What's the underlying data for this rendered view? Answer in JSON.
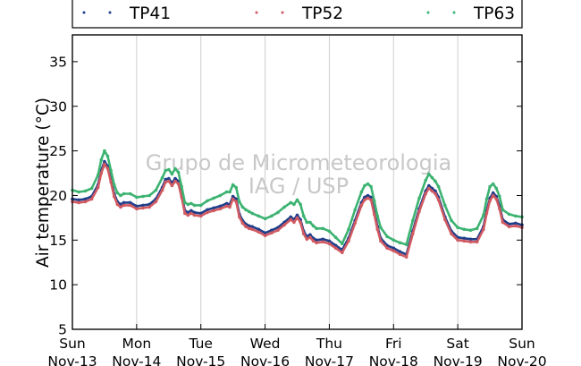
{
  "chart_data": {
    "type": "line",
    "title": "",
    "ylabel": "Air temperature (°C)",
    "ylim": [
      5,
      38
    ],
    "yticks": [
      5,
      10,
      15,
      20,
      25,
      30,
      35
    ],
    "x_range_days": [
      0,
      7
    ],
    "xticks": [
      {
        "day": "Sun",
        "date": "Nov-13"
      },
      {
        "day": "Mon",
        "date": "Nov-14"
      },
      {
        "day": "Tue",
        "date": "Nov-15"
      },
      {
        "day": "Wed",
        "date": "Nov-16"
      },
      {
        "day": "Thu",
        "date": "Nov-17"
      },
      {
        "day": "Fri",
        "date": "Nov-18"
      },
      {
        "day": "Sat",
        "date": "Nov-19"
      },
      {
        "day": "Sun",
        "date": "Nov-20"
      }
    ],
    "grid": "vertical",
    "legend_placement": "top",
    "watermark": [
      "Grupo de Micrometeorologia",
      "IAG / USP"
    ],
    "series": [
      {
        "name": "TP41",
        "color": "#1f3e8a",
        "x": [
          0,
          0.1,
          0.2,
          0.3,
          0.4,
          0.45,
          0.5,
          0.55,
          0.6,
          0.65,
          0.7,
          0.75,
          0.8,
          0.9,
          1.0,
          1.1,
          1.2,
          1.3,
          1.4,
          1.45,
          1.5,
          1.55,
          1.6,
          1.65,
          1.7,
          1.75,
          1.8,
          1.85,
          1.9,
          2.0,
          2.1,
          2.2,
          2.3,
          2.4,
          2.45,
          2.5,
          2.55,
          2.6,
          2.65,
          2.7,
          2.75,
          2.8,
          2.9,
          3.0,
          3.1,
          3.2,
          3.3,
          3.4,
          3.45,
          3.5,
          3.55,
          3.6,
          3.65,
          3.7,
          3.75,
          3.8,
          3.9,
          4.0,
          4.1,
          4.2,
          4.3,
          4.4,
          4.5,
          4.55,
          4.6,
          4.65,
          4.7,
          4.75,
          4.8,
          4.9,
          5.0,
          5.1,
          5.2,
          5.3,
          5.4,
          5.5,
          5.55,
          5.6,
          5.65,
          5.7,
          5.8,
          5.9,
          6.0,
          6.1,
          6.2,
          6.3,
          6.4,
          6.45,
          6.5,
          6.55,
          6.6,
          6.65,
          6.7,
          6.8,
          6.9,
          7.0
        ],
        "y": [
          19.6,
          19.5,
          19.6,
          19.9,
          21.2,
          22.8,
          23.8,
          23.3,
          21.8,
          20.2,
          19.3,
          19.0,
          19.2,
          19.2,
          18.8,
          18.9,
          19.0,
          19.6,
          20.9,
          21.8,
          21.9,
          21.4,
          21.9,
          21.6,
          20.1,
          18.3,
          18.1,
          18.3,
          18.1,
          18.0,
          18.4,
          18.6,
          18.8,
          19.1,
          19.0,
          19.9,
          19.6,
          17.9,
          17.2,
          16.8,
          16.6,
          16.5,
          16.2,
          15.8,
          16.1,
          16.4,
          17.0,
          17.6,
          17.3,
          17.8,
          17.3,
          16.0,
          15.4,
          15.6,
          15.2,
          15.0,
          15.1,
          14.9,
          14.4,
          13.9,
          15.2,
          17.2,
          19.2,
          19.8,
          20.0,
          19.8,
          18.2,
          16.5,
          15.2,
          14.4,
          14.1,
          13.7,
          13.4,
          16.0,
          18.5,
          20.5,
          21.1,
          20.8,
          20.5,
          19.8,
          17.6,
          16.0,
          15.3,
          15.2,
          15.1,
          15.1,
          16.5,
          18.3,
          19.7,
          20.3,
          19.9,
          18.8,
          17.3,
          16.8,
          16.9,
          16.7
        ]
      },
      {
        "name": "TP52",
        "color": "#d15a62",
        "x": [
          0,
          0.1,
          0.2,
          0.3,
          0.4,
          0.45,
          0.5,
          0.55,
          0.6,
          0.65,
          0.7,
          0.75,
          0.8,
          0.9,
          1.0,
          1.1,
          1.2,
          1.3,
          1.4,
          1.45,
          1.5,
          1.55,
          1.6,
          1.65,
          1.7,
          1.75,
          1.8,
          1.85,
          1.9,
          2.0,
          2.1,
          2.2,
          2.3,
          2.4,
          2.45,
          2.5,
          2.55,
          2.6,
          2.65,
          2.7,
          2.75,
          2.8,
          2.9,
          3.0,
          3.1,
          3.2,
          3.3,
          3.4,
          3.45,
          3.5,
          3.55,
          3.6,
          3.65,
          3.7,
          3.75,
          3.8,
          3.9,
          4.0,
          4.1,
          4.2,
          4.3,
          4.4,
          4.5,
          4.55,
          4.6,
          4.65,
          4.7,
          4.75,
          4.8,
          4.9,
          5.0,
          5.1,
          5.2,
          5.3,
          5.4,
          5.5,
          5.55,
          5.6,
          5.65,
          5.7,
          5.8,
          5.9,
          6.0,
          6.1,
          6.2,
          6.3,
          6.4,
          6.45,
          6.5,
          6.55,
          6.6,
          6.65,
          6.7,
          6.8,
          6.9,
          7.0
        ],
        "y": [
          19.3,
          19.2,
          19.3,
          19.6,
          20.9,
          22.5,
          23.5,
          23.0,
          21.5,
          19.9,
          19.0,
          18.7,
          18.9,
          18.9,
          18.5,
          18.6,
          18.7,
          19.3,
          20.6,
          21.5,
          21.6,
          21.1,
          21.6,
          21.3,
          19.8,
          18.0,
          17.8,
          18.0,
          17.8,
          17.7,
          18.1,
          18.3,
          18.5,
          18.8,
          18.7,
          19.6,
          19.3,
          17.6,
          16.9,
          16.5,
          16.3,
          16.2,
          15.9,
          15.5,
          15.8,
          16.1,
          16.7,
          17.3,
          17.0,
          17.5,
          17.0,
          15.7,
          15.1,
          15.3,
          14.9,
          14.7,
          14.8,
          14.6,
          14.1,
          13.6,
          14.9,
          16.9,
          18.9,
          19.5,
          19.7,
          19.5,
          17.9,
          16.2,
          14.9,
          14.1,
          13.8,
          13.4,
          13.1,
          15.7,
          18.2,
          20.2,
          20.8,
          20.5,
          20.2,
          19.5,
          17.3,
          15.7,
          15.0,
          14.9,
          14.8,
          14.8,
          16.2,
          18.0,
          19.4,
          20.0,
          19.6,
          18.5,
          17.0,
          16.5,
          16.6,
          16.4
        ]
      },
      {
        "name": "TP63",
        "color": "#3cb371",
        "x": [
          0,
          0.1,
          0.2,
          0.3,
          0.4,
          0.45,
          0.5,
          0.55,
          0.6,
          0.65,
          0.7,
          0.75,
          0.8,
          0.9,
          1.0,
          1.1,
          1.2,
          1.3,
          1.4,
          1.45,
          1.5,
          1.55,
          1.6,
          1.65,
          1.7,
          1.75,
          1.8,
          1.85,
          1.9,
          2.0,
          2.1,
          2.2,
          2.3,
          2.4,
          2.45,
          2.5,
          2.55,
          2.6,
          2.65,
          2.7,
          2.75,
          2.8,
          2.9,
          3.0,
          3.1,
          3.2,
          3.3,
          3.4,
          3.45,
          3.5,
          3.55,
          3.6,
          3.65,
          3.7,
          3.75,
          3.8,
          3.9,
          4.0,
          4.1,
          4.2,
          4.3,
          4.4,
          4.5,
          4.55,
          4.6,
          4.65,
          4.7,
          4.75,
          4.8,
          4.9,
          5.0,
          5.1,
          5.2,
          5.3,
          5.4,
          5.5,
          5.55,
          5.6,
          5.65,
          5.7,
          5.8,
          5.9,
          6.0,
          6.1,
          6.2,
          6.3,
          6.4,
          6.45,
          6.5,
          6.55,
          6.6,
          6.65,
          6.7,
          6.8,
          6.9,
          7.0
        ],
        "y": [
          20.6,
          20.4,
          20.5,
          20.8,
          22.3,
          24.0,
          25.0,
          24.4,
          22.8,
          21.2,
          20.3,
          20.0,
          20.2,
          20.2,
          19.8,
          19.9,
          20.0,
          20.6,
          22.0,
          22.8,
          22.9,
          22.4,
          23.0,
          22.6,
          21.0,
          19.2,
          19.0,
          19.1,
          18.9,
          18.9,
          19.4,
          19.7,
          20.0,
          20.4,
          20.4,
          21.2,
          20.9,
          19.3,
          18.7,
          18.4,
          18.2,
          18.0,
          17.7,
          17.4,
          17.7,
          18.1,
          18.7,
          19.2,
          19.0,
          19.5,
          19.0,
          17.7,
          17.0,
          17.0,
          16.6,
          16.3,
          16.3,
          16.0,
          15.3,
          14.6,
          16.2,
          18.4,
          20.4,
          21.1,
          21.3,
          21.0,
          19.4,
          17.7,
          16.4,
          15.4,
          15.0,
          14.7,
          14.5,
          17.2,
          19.7,
          21.7,
          22.4,
          22.0,
          21.6,
          21.0,
          18.9,
          17.2,
          16.4,
          16.2,
          16.1,
          16.3,
          17.8,
          19.6,
          21.0,
          21.3,
          20.8,
          19.9,
          18.4,
          17.9,
          17.7,
          17.6
        ]
      }
    ]
  }
}
